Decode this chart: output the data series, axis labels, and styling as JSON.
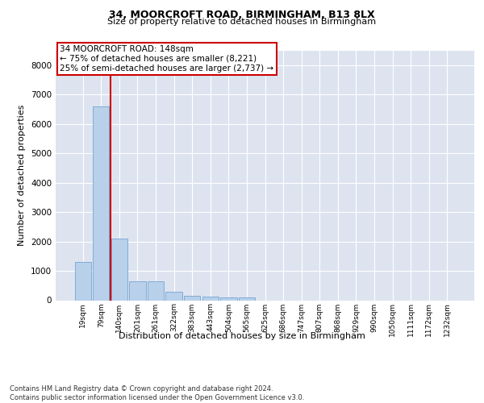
{
  "title_line1": "34, MOORCROFT ROAD, BIRMINGHAM, B13 8LX",
  "title_line2": "Size of property relative to detached houses in Birmingham",
  "xlabel": "Distribution of detached houses by size in Birmingham",
  "ylabel": "Number of detached properties",
  "footnote": "Contains HM Land Registry data © Crown copyright and database right 2024.\nContains public sector information licensed under the Open Government Licence v3.0.",
  "bar_labels": [
    "19sqm",
    "79sqm",
    "140sqm",
    "201sqm",
    "261sqm",
    "322sqm",
    "383sqm",
    "443sqm",
    "504sqm",
    "565sqm",
    "625sqm",
    "686sqm",
    "747sqm",
    "807sqm",
    "868sqm",
    "929sqm",
    "990sqm",
    "1050sqm",
    "1111sqm",
    "1172sqm",
    "1232sqm"
  ],
  "bar_values": [
    1300,
    6600,
    2100,
    650,
    650,
    290,
    140,
    110,
    85,
    85,
    0,
    0,
    0,
    0,
    0,
    0,
    0,
    0,
    0,
    0,
    0
  ],
  "bar_color": "#b8d0ea",
  "bar_edge_color": "#6699cc",
  "background_color": "#dde4f0",
  "grid_color": "#ffffff",
  "annotation_box_text_line1": "34 MOORCROFT ROAD: 148sqm",
  "annotation_box_text_line2": "← 75% of detached houses are smaller (8,221)",
  "annotation_box_text_line3": "25% of semi-detached houses are larger (2,737) →",
  "annotation_box_color": "#cc0000",
  "ylim": [
    0,
    8500
  ],
  "yticks": [
    0,
    1000,
    2000,
    3000,
    4000,
    5000,
    6000,
    7000,
    8000
  ]
}
